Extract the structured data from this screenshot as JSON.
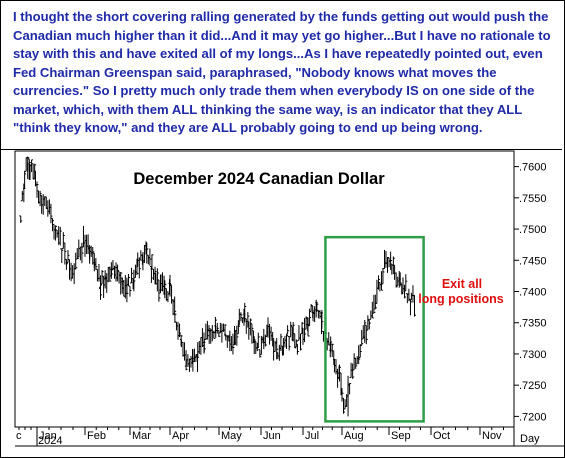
{
  "commentary": "I thought the short covering ralling generated by the funds getting out would push the Canadian much higher than it did...And it may yet go higher...But I have no rationale to stay with this and have exited all of my longs...As I have repeatedly pointed out, even Fed Chairman Greenspan said, paraphrased, \"Nobody knows what moves the currencies.\" So I pretty much only trade them when everybody IS on one side of the market, which, with them ALL thinking the same way, is an indicator that they ALL \"think they know,\" and they are ALL probably going to end up being wrong.",
  "colors": {
    "commentary_text": "#1f2aa8",
    "highlight_box": "#2e9e47",
    "annotation_text": "#e01010",
    "bars": "#000000"
  },
  "chart_data": {
    "type": "ohlc",
    "title": "December 2024 Canadian Dollar",
    "x_axis_label": "Day",
    "year_label": "2024",
    "month_labels": [
      "Dec",
      "Jan",
      "Feb",
      "Mar",
      "Apr",
      "May",
      "Jun",
      "Jul",
      "Aug",
      "Sep",
      "Oct",
      "Nov"
    ],
    "y_ticks": [
      ".7200",
      ".7250",
      ".7300",
      ".7350",
      ".7400",
      ".7450",
      ".7500",
      ".7550",
      ".7600"
    ],
    "y_tick_values": [
      0.72,
      0.725,
      0.73,
      0.735,
      0.74,
      0.745,
      0.75,
      0.755,
      0.76
    ],
    "ylim": [
      0.7183,
      0.7625
    ],
    "grid": false,
    "annotation": {
      "lines": [
        "Exit all",
        "long positions"
      ]
    },
    "highlight_region": {
      "from": "Jul 22",
      "to": "Sep 20",
      "low": 0.7192,
      "high": 0.7487
    },
    "series": [
      {
        "date": "Dec 11",
        "close": 0.7522
      },
      {
        "date": "Dec 13",
        "close": 0.7555
      },
      {
        "date": "Dec 16",
        "close": 0.7575
      },
      {
        "date": "Dec 18",
        "close": 0.759
      },
      {
        "date": "Dec 20",
        "close": 0.7603
      },
      {
        "date": "Dec 23",
        "close": 0.7598
      },
      {
        "date": "Dec 27",
        "close": 0.7592
      },
      {
        "date": "Dec 30",
        "close": 0.7575
      },
      {
        "date": "Jan 03",
        "close": 0.755
      },
      {
        "date": "Jan 07",
        "close": 0.754
      },
      {
        "date": "Jan 10",
        "close": 0.7515
      },
      {
        "date": "Jan 14",
        "close": 0.749
      },
      {
        "date": "Jan 17",
        "close": 0.7475
      },
      {
        "date": "Jan 21",
        "close": 0.7445
      },
      {
        "date": "Jan 24",
        "close": 0.743
      },
      {
        "date": "Jan 28",
        "close": 0.746
      },
      {
        "date": "Jan 31",
        "close": 0.748
      },
      {
        "date": "Feb 04",
        "close": 0.7465
      },
      {
        "date": "Feb 07",
        "close": 0.744
      },
      {
        "date": "Feb 11",
        "close": 0.741
      },
      {
        "date": "Feb 14",
        "close": 0.742
      },
      {
        "date": "Feb 18",
        "close": 0.7435
      },
      {
        "date": "Feb 21",
        "close": 0.7425
      },
      {
        "date": "Feb 25",
        "close": 0.741
      },
      {
        "date": "Feb 28",
        "close": 0.7405
      },
      {
        "date": "Mar 04",
        "close": 0.742
      },
      {
        "date": "Mar 07",
        "close": 0.744
      },
      {
        "date": "Mar 11",
        "close": 0.745
      },
      {
        "date": "Mar 14",
        "close": 0.746
      },
      {
        "date": "Mar 18",
        "close": 0.744
      },
      {
        "date": "Mar 21",
        "close": 0.7415
      },
      {
        "date": "Mar 25",
        "close": 0.7405
      },
      {
        "date": "Mar 28",
        "close": 0.741
      },
      {
        "date": "Apr 01",
        "close": 0.74
      },
      {
        "date": "Apr 04",
        "close": 0.736
      },
      {
        "date": "Apr 08",
        "close": 0.731
      },
      {
        "date": "Apr 11",
        "close": 0.728
      },
      {
        "date": "Apr 15",
        "close": 0.7285
      },
      {
        "date": "Apr 18",
        "close": 0.73
      },
      {
        "date": "Apr 22",
        "close": 0.732
      },
      {
        "date": "Apr 25",
        "close": 0.7335
      },
      {
        "date": "Apr 29",
        "close": 0.734
      },
      {
        "date": "May 02",
        "close": 0.7345
      },
      {
        "date": "May 06",
        "close": 0.7335
      },
      {
        "date": "May 09",
        "close": 0.732
      },
      {
        "date": "May 13",
        "close": 0.733
      },
      {
        "date": "May 16",
        "close": 0.735
      },
      {
        "date": "May 20",
        "close": 0.7355
      },
      {
        "date": "May 23",
        "close": 0.7345
      },
      {
        "date": "May 27",
        "close": 0.732
      },
      {
        "date": "May 30",
        "close": 0.731
      },
      {
        "date": "Jun 03",
        "close": 0.7315
      },
      {
        "date": "Jun 06",
        "close": 0.733
      },
      {
        "date": "Jun 10",
        "close": 0.7315
      },
      {
        "date": "Jun 13",
        "close": 0.73
      },
      {
        "date": "Jun 17",
        "close": 0.7305
      },
      {
        "date": "Jun 20",
        "close": 0.7325
      },
      {
        "date": "Jun 24",
        "close": 0.734
      },
      {
        "date": "Jun 27",
        "close": 0.732
      },
      {
        "date": "Jul 01",
        "close": 0.7335
      },
      {
        "date": "Jul 05",
        "close": 0.735
      },
      {
        "date": "Jul 09",
        "close": 0.737
      },
      {
        "date": "Jul 12",
        "close": 0.7375
      },
      {
        "date": "Jul 16",
        "close": 0.7345
      },
      {
        "date": "Jul 19",
        "close": 0.733
      },
      {
        "date": "Jul 23",
        "close": 0.731
      },
      {
        "date": "Jul 26",
        "close": 0.7285
      },
      {
        "date": "Jul 30",
        "close": 0.726
      },
      {
        "date": "Aug 01",
        "close": 0.7235
      },
      {
        "date": "Aug 02",
        "close": 0.7215
      },
      {
        "date": "Aug 05",
        "close": 0.723
      },
      {
        "date": "Aug 07",
        "close": 0.727
      },
      {
        "date": "Aug 09",
        "close": 0.7285
      },
      {
        "date": "Aug 12",
        "close": 0.7305
      },
      {
        "date": "Aug 14",
        "close": 0.7315
      },
      {
        "date": "Aug 16",
        "close": 0.733
      },
      {
        "date": "Aug 19",
        "close": 0.7345
      },
      {
        "date": "Aug 21",
        "close": 0.737
      },
      {
        "date": "Aug 23",
        "close": 0.7395
      },
      {
        "date": "Aug 26",
        "close": 0.7415
      },
      {
        "date": "Aug 28",
        "close": 0.744
      },
      {
        "date": "Aug 30",
        "close": 0.7455
      },
      {
        "date": "Sep 03",
        "close": 0.745
      },
      {
        "date": "Sep 05",
        "close": 0.7425
      },
      {
        "date": "Sep 09",
        "close": 0.741
      },
      {
        "date": "Sep 11",
        "close": 0.742
      },
      {
        "date": "Sep 13",
        "close": 0.74
      },
      {
        "date": "Sep 17",
        "close": 0.7385
      },
      {
        "date": "Sep 20",
        "close": 0.738
      }
    ]
  }
}
